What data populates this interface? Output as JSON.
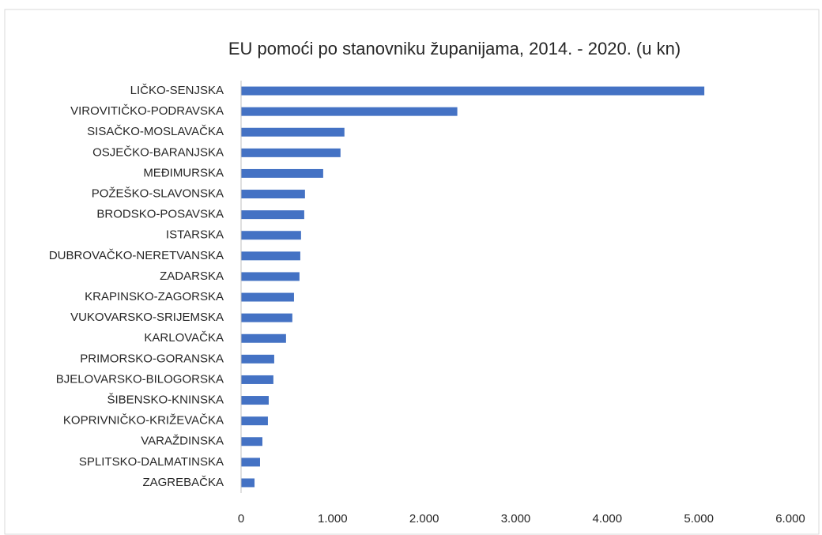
{
  "chart_data": {
    "type": "bar",
    "orientation": "horizontal",
    "title": "EU pomoći po stanovniku županijama, 2014. - 2020. (u kn)",
    "categories": [
      "LIČKO-SENJSKA",
      "VIROVITIČKO-PODRAVSKA",
      "SISAČKO-MOSLAVAČKA",
      "OSJEČKO-BARANJSKA",
      "MEĐIMURSKA",
      "POŽEŠKO-SLAVONSKA",
      "BRODSKO-POSAVSKA",
      "ISTARSKA",
      "DUBROVAČKO-NERETVANSKA",
      "ZADARSKA",
      "KRAPINSKO-ZAGORSKA",
      "VUKOVARSKO-SRIJEMSKA",
      "KARLOVAČKA",
      "PRIMORSKO-GORANSKA",
      "BJELOVARSKO-BILOGORSKA",
      "ŠIBENSKO-KNINSKA",
      "KOPRIVNIČKO-KRIŽEVAČKA",
      "VARAŽDINSKA",
      "SPLITSKO-DALMATINSKA",
      "ZAGREBAČKA"
    ],
    "values": [
      5060,
      2362,
      1129,
      1086,
      897,
      698,
      690,
      655,
      647,
      638,
      578,
      560,
      491,
      362,
      353,
      302,
      293,
      233,
      207,
      147
    ],
    "color": "#4472c4",
    "xlim": [
      0,
      6000
    ],
    "xticks": [
      0,
      {
        "value": 1000,
        "label": "1.000"
      },
      {
        "value": 2000,
        "label": "2.000"
      },
      {
        "value": 3000,
        "label": "3.000"
      },
      {
        "value": 4000,
        "label": "4.000"
      },
      {
        "value": 5000,
        "label": "5.000"
      },
      {
        "value": 6000,
        "label": "6.000"
      }
    ],
    "grid": false
  }
}
